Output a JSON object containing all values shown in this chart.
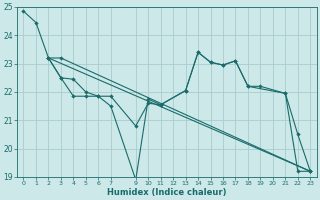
{
  "xlabel": "Humidex (Indice chaleur)",
  "xlim": [
    -0.5,
    23.5
  ],
  "ylim": [
    19,
    25
  ],
  "yticks": [
    19,
    20,
    21,
    22,
    23,
    24,
    25
  ],
  "xticks": [
    0,
    1,
    2,
    3,
    4,
    5,
    6,
    7,
    9,
    10,
    11,
    12,
    13,
    14,
    15,
    16,
    17,
    18,
    19,
    20,
    21,
    22,
    23
  ],
  "bg_color": "#cce8e8",
  "grid_color": "#aacccc",
  "line_color": "#1a6b6b",
  "line1": {
    "x": [
      0,
      1,
      2,
      3,
      23
    ],
    "y": [
      24.85,
      24.45,
      23.2,
      23.2,
      19.2
    ]
  },
  "line2": {
    "x": [
      2,
      3,
      4,
      5,
      6,
      7,
      9,
      10,
      11,
      13,
      14,
      15,
      16,
      17,
      18,
      21,
      22,
      23
    ],
    "y": [
      23.2,
      22.5,
      21.85,
      21.85,
      21.85,
      21.5,
      18.9,
      21.75,
      21.55,
      22.05,
      23.4,
      23.05,
      22.95,
      23.1,
      22.2,
      21.95,
      20.5,
      19.2
    ]
  },
  "line3": {
    "x": [
      2,
      23
    ],
    "y": [
      23.2,
      19.2
    ]
  },
  "line4": {
    "x": [
      2,
      3,
      4,
      5,
      6,
      7,
      9,
      10,
      11,
      13,
      14,
      15,
      16,
      17,
      18,
      19,
      21,
      22,
      23
    ],
    "y": [
      23.2,
      22.5,
      22.45,
      22.0,
      21.85,
      21.85,
      20.8,
      21.6,
      21.55,
      22.05,
      23.4,
      23.05,
      22.95,
      23.1,
      22.2,
      22.2,
      21.95,
      19.2,
      19.2
    ]
  }
}
